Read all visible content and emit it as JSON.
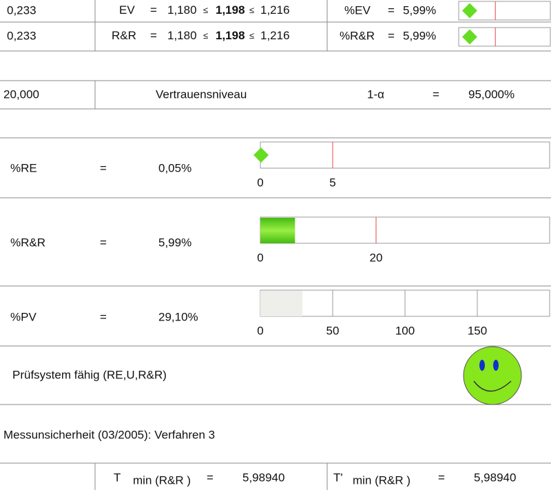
{
  "rows": [
    {
      "n": "0,233",
      "label": "EV",
      "eq": "=",
      "lower": "1,180",
      "le1": "≤",
      "value": "1,198",
      "le2": "≤",
      "upper": "1,216",
      "pct_label": "%EV",
      "pct_eq": "=",
      "gauge": {
        "value": 5.99,
        "value_label": "5,99%",
        "xlim": [
          0,
          50
        ],
        "limit": 20,
        "marker": "diamond",
        "color": "#66dd22"
      }
    },
    {
      "n": "0,233",
      "label": "R&R",
      "eq": "=",
      "lower": "1,180",
      "le1": "≤",
      "value": "1,198",
      "le2": "≤",
      "upper": "1,216",
      "pct_label": "%R&R",
      "pct_eq": "=",
      "gauge": {
        "value": 5.99,
        "value_label": "5,99%",
        "xlim": [
          0,
          50
        ],
        "limit": 20,
        "marker": "diamond",
        "color": "#66dd22"
      }
    }
  ],
  "confidence": {
    "n": "20,000",
    "label": "Vertrauensniveau",
    "symbol": "1-α",
    "eq": "=",
    "value": "95,000%"
  },
  "indices": [
    {
      "label": "%RE",
      "eq": "=",
      "gauge": {
        "value": 0.05,
        "value_label": "0,05%",
        "xlim": [
          0,
          20
        ],
        "ticks": [
          0,
          5
        ],
        "limit": 5,
        "marker": "diamond",
        "color": "#66dd22"
      }
    },
    {
      "label": "%R&R",
      "eq": "=",
      "gauge": {
        "value": 5.99,
        "value_label": "5,99%",
        "xlim": [
          0,
          50
        ],
        "ticks": [
          0,
          20
        ],
        "limit": 20,
        "marker": "bar",
        "color": "#55cc22"
      }
    },
    {
      "label": "%PV",
      "eq": "=",
      "gauge": {
        "value": 29.1,
        "value_label": "29,10%",
        "xlim": [
          0,
          200
        ],
        "ticks": [
          0,
          50,
          100,
          150
        ],
        "grid": true,
        "marker": "bar",
        "color": "#eeeeea"
      }
    }
  ],
  "verdict": {
    "text": "Prüfsystem fähig (RE,U,R&R)",
    "face_color": "#88e61c"
  },
  "method": "Messunsicherheit (03/2005): Verfahren 3",
  "tmin": [
    {
      "symbol": "T",
      "subscript": "min (R&R )",
      "eq": "=",
      "value": "5,98940"
    },
    {
      "symbol": "T'",
      "subscript": "min (R&R )",
      "eq": "=",
      "value": "5,98940"
    }
  ]
}
